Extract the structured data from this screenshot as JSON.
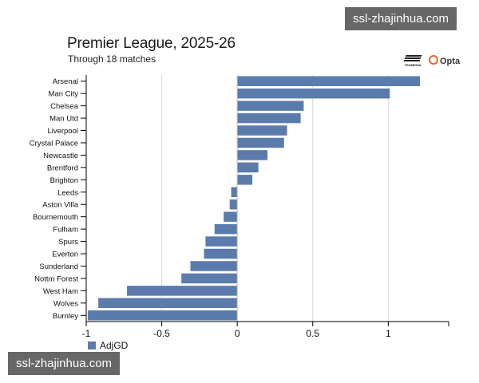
{
  "watermark": "ssl-zhajinhua.com",
  "logos": {
    "trumedia": "TRUMEDIA",
    "opta": "Opta"
  },
  "colors": {
    "bar": "#5a7bac",
    "grid": "#d9d9d9",
    "axis": "#000000"
  },
  "chart_data": {
    "type": "bar",
    "orientation": "horizontal",
    "title": "Premier League, 2025-26",
    "subtitle": "Through 18 matches",
    "categories": [
      "Arsenal",
      "Man City",
      "Chelsea",
      "Man Utd",
      "Liverpool",
      "Crystal Palace",
      "Newcastle",
      "Brentford",
      "Brighton",
      "Leeds",
      "Aston Villa",
      "Bournemouth",
      "Fulham",
      "Spurs",
      "Everton",
      "Sunderland",
      "Nottm Forest",
      "West Ham",
      "Wolves",
      "Burnley"
    ],
    "series": [
      {
        "name": "AdjGD",
        "values": [
          1.21,
          1.01,
          0.44,
          0.42,
          0.33,
          0.31,
          0.2,
          0.14,
          0.1,
          -0.04,
          -0.05,
          -0.09,
          -0.15,
          -0.21,
          -0.22,
          -0.31,
          -0.37,
          -0.73,
          -0.92,
          -0.99
        ]
      }
    ],
    "xlim": [
      -1,
      1.4
    ],
    "xticks": [
      -1,
      -0.5,
      0,
      0.5,
      1
    ],
    "xtick_labels": [
      "-1",
      "-0.5",
      "0",
      "0.5",
      "1"
    ],
    "xlabel": "",
    "ylabel": "",
    "grid": true,
    "legend": "bottom-left"
  }
}
